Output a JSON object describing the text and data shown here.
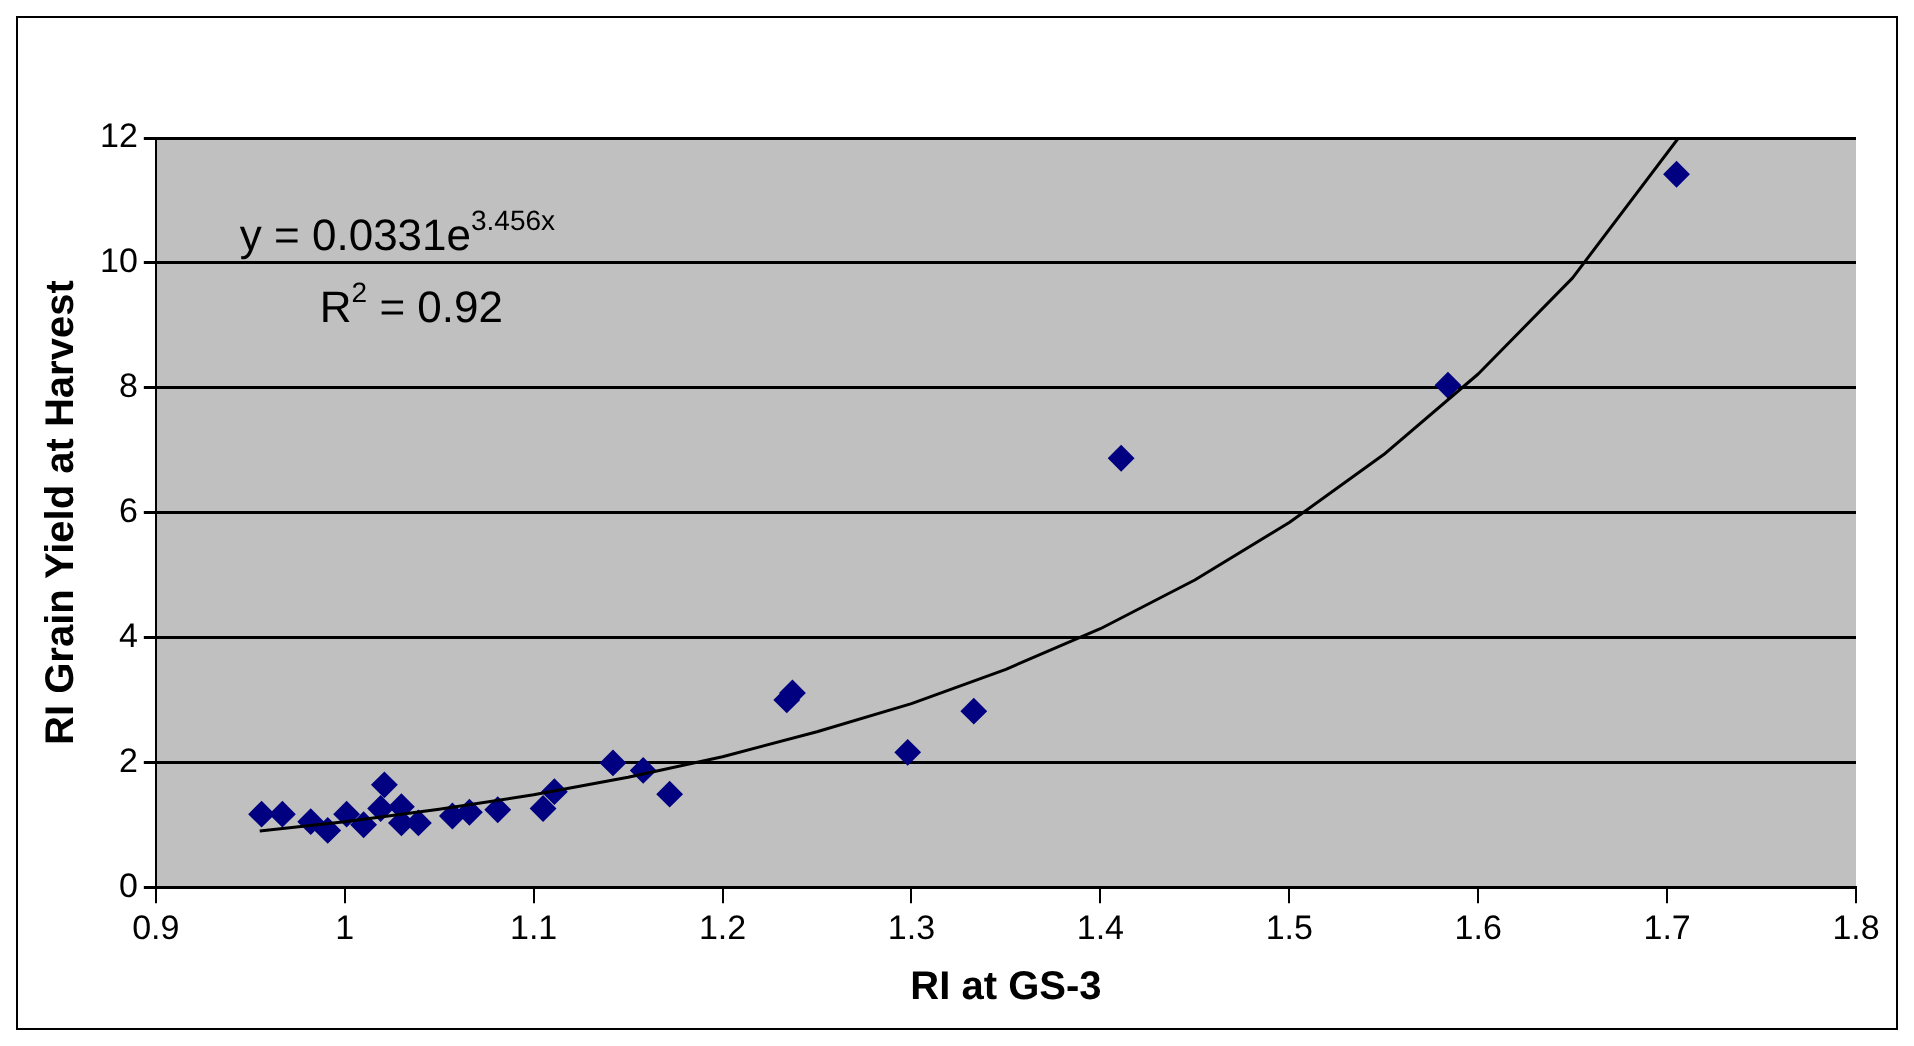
{
  "chart_data": {
    "type": "scatter",
    "xlabel": "RI at GS-3",
    "ylabel": "RI Grain Yield at Harvest",
    "x": [
      0.956,
      0.967,
      0.982,
      0.991,
      1.001,
      1.01,
      1.021,
      1.019,
      1.03,
      1.03,
      1.039,
      1.057,
      1.066,
      1.081,
      1.105,
      1.111,
      1.142,
      1.158,
      1.172,
      1.237,
      1.234,
      1.298,
      1.333,
      1.411,
      1.584,
      1.705
    ],
    "series": [
      {
        "color": "#000080",
        "values": [
          1.17,
          1.17,
          1.05,
          0.91,
          1.17,
          1.0,
          1.64,
          1.26,
          1.29,
          1.03,
          1.03,
          1.14,
          1.2,
          1.24,
          1.26,
          1.53,
          1.99,
          1.87,
          1.49,
          3.11,
          3.0,
          2.16,
          2.82,
          6.87,
          8.04,
          11.42
        ]
      },
      {
        "type": "line",
        "color": "#000000",
        "marker": "none",
        "x": [
          0.955,
          1.0,
          1.05,
          1.1,
          1.15,
          1.2,
          1.25,
          1.3,
          1.35,
          1.4,
          1.45,
          1.5,
          1.55,
          1.6,
          1.65,
          1.706
        ],
        "values": [
          0.9,
          1.05,
          1.25,
          1.48,
          1.76,
          2.09,
          2.49,
          2.94,
          3.49,
          4.14,
          4.92,
          5.84,
          6.93,
          8.22,
          9.76,
          12
        ]
      }
    ],
    "annotations": [
      "y = 0.0331e$^{3.456x}$",
      "R$^{2}$ = 0.92"
    ],
    "xlim": [
      0.9,
      1.8
    ],
    "xticks": [
      0.9,
      1,
      1.1,
      1.2,
      1.3,
      1.4,
      1.5,
      1.6,
      1.7,
      1.8
    ],
    "ylim": [
      0,
      12
    ],
    "yticks": [
      0,
      2,
      4,
      6,
      8,
      10,
      12
    ],
    "grid": "y",
    "legend": false,
    "marker": "diamond"
  }
}
